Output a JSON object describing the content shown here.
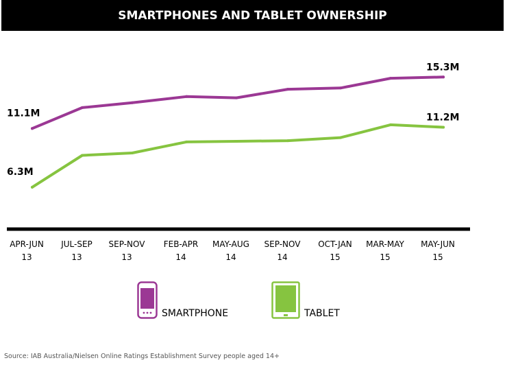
{
  "chart_data": {
    "type": "line",
    "title": "SMARTPHONES AND TABLET OWNERSHIP",
    "categories": [
      [
        "APR-JUN",
        "13"
      ],
      [
        "JUL-SEP",
        "13"
      ],
      [
        "SEP-NOV",
        "13"
      ],
      [
        "FEB-APR",
        "14"
      ],
      [
        "MAY-AUG",
        "14"
      ],
      [
        "SEP-NOV",
        "14"
      ],
      [
        "OCT-JAN",
        "15"
      ],
      [
        "MAR-MAY",
        "15"
      ],
      [
        "MAY-JUN",
        "15"
      ]
    ],
    "ylim": [
      4.0,
      17.5
    ],
    "grid": false,
    "legend_position": "bottom",
    "series": [
      {
        "name": "SMARTPHONE",
        "color": "#9b3894",
        "values": [
          11.1,
          12.8,
          13.2,
          13.7,
          13.6,
          14.3,
          14.4,
          15.2,
          15.3
        ],
        "labels": [
          {
            "index": 0,
            "text": "11.1M"
          },
          {
            "index": 8,
            "text": "15.3M"
          }
        ]
      },
      {
        "name": "TABLET",
        "color": "#86c440",
        "values": [
          6.3,
          8.9,
          9.1,
          10.0,
          10.05,
          10.1,
          10.35,
          11.4,
          11.2
        ],
        "labels": [
          {
            "index": 0,
            "text": "6.3M"
          },
          {
            "index": 8,
            "text": "11.2M"
          }
        ]
      }
    ]
  },
  "legend": {
    "smartphone": {
      "label": "SMARTPHONE",
      "icon": "smartphone-icon",
      "color": "#9b3894"
    },
    "tablet": {
      "label": "TABLET",
      "icon": "tablet-icon",
      "color": "#86c440"
    }
  },
  "source": "Source: IAB Australia/Nielsen Online Ratings Establishment Survey people aged 14+"
}
